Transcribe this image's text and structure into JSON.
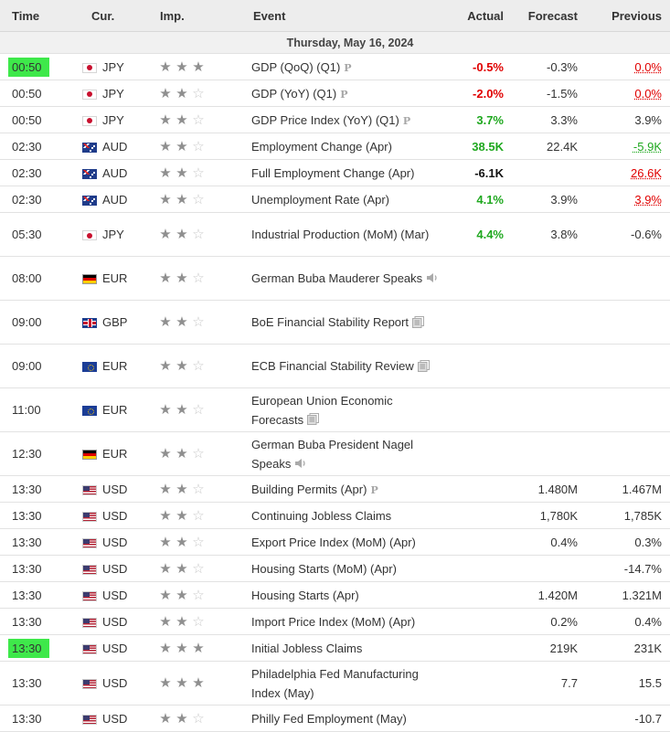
{
  "header": {
    "time": "Time",
    "cur": "Cur.",
    "imp": "Imp.",
    "event": "Event",
    "actual": "Actual",
    "forecast": "Forecast",
    "previous": "Previous"
  },
  "day_label": "Thursday, May 16, 2024",
  "colors": {
    "highlight": "#3ee84a",
    "negative": "#e00000",
    "positive": "#1fa81f"
  },
  "rows": [
    {
      "time": "00:50",
      "cur": "JPY",
      "flag": "jp",
      "stars": 3,
      "event": "GDP (QoQ) (Q1)",
      "extra": "P",
      "actual": "-0.5%",
      "forecast": "-0.3%",
      "previous": "0.0%",
      "highlight": true
    },
    {
      "time": "00:50",
      "cur": "JPY",
      "flag": "jp",
      "stars": 2,
      "event": "GDP (YoY) (Q1)",
      "extra": "P",
      "actual": "-2.0%",
      "forecast": "-1.5%",
      "previous": "0.0%"
    },
    {
      "time": "00:50",
      "cur": "JPY",
      "flag": "jp",
      "stars": 2,
      "event": "GDP Price Index (YoY) (Q1)",
      "extra": "P",
      "actual": "3.7%",
      "forecast": "3.3%",
      "previous": "3.9%"
    },
    {
      "time": "02:30",
      "cur": "AUD",
      "flag": "au",
      "stars": 2,
      "event": "Employment Change (Apr)",
      "actual": "38.5K",
      "forecast": "22.4K",
      "previous": "-5.9K"
    },
    {
      "time": "02:30",
      "cur": "AUD",
      "flag": "au",
      "stars": 2,
      "event": "Full Employment Change (Apr)",
      "actual": "-6.1K",
      "forecast": "",
      "previous": "26.6K"
    },
    {
      "time": "02:30",
      "cur": "AUD",
      "flag": "au",
      "stars": 2,
      "event": "Unemployment Rate (Apr)",
      "actual": "4.1%",
      "forecast": "3.9%",
      "previous": "3.9%"
    },
    {
      "time": "05:30",
      "cur": "JPY",
      "flag": "jp",
      "stars": 2,
      "event": "Industrial Production (MoM) (Mar)",
      "actual": "4.4%",
      "forecast": "3.8%",
      "previous": "-0.6%"
    },
    {
      "time": "08:00",
      "cur": "EUR",
      "flag": "de",
      "stars": 2,
      "event": "German Buba Mauderer Speaks",
      "icon": "speaker-icon",
      "actual": "",
      "forecast": "",
      "previous": ""
    },
    {
      "time": "09:00",
      "cur": "GBP",
      "flag": "gb",
      "stars": 2,
      "event": "BoE Financial Stability Report",
      "icon": "document-icon",
      "actual": "",
      "forecast": "",
      "previous": ""
    },
    {
      "time": "09:00",
      "cur": "EUR",
      "flag": "eu",
      "stars": 2,
      "event": "ECB Financial Stability Review",
      "icon": "document-icon",
      "actual": "",
      "forecast": "",
      "previous": ""
    },
    {
      "time": "11:00",
      "cur": "EUR",
      "flag": "eu",
      "stars": 2,
      "event": "European Union Economic Forecasts",
      "icon": "document-icon",
      "actual": "",
      "forecast": "",
      "previous": ""
    },
    {
      "time": "12:30",
      "cur": "EUR",
      "flag": "de",
      "stars": 2,
      "event": "German Buba President Nagel Speaks",
      "icon": "speaker-icon",
      "actual": "",
      "forecast": "",
      "previous": ""
    },
    {
      "time": "13:30",
      "cur": "USD",
      "flag": "us",
      "stars": 2,
      "event": "Building Permits (Apr)",
      "extra": "P",
      "actual": "",
      "forecast": "1.480M",
      "previous": "1.467M"
    },
    {
      "time": "13:30",
      "cur": "USD",
      "flag": "us",
      "stars": 2,
      "event": "Continuing Jobless Claims",
      "actual": "",
      "forecast": "1,780K",
      "previous": "1,785K"
    },
    {
      "time": "13:30",
      "cur": "USD",
      "flag": "us",
      "stars": 2,
      "event": "Export Price Index (MoM) (Apr)",
      "actual": "",
      "forecast": "0.4%",
      "previous": "0.3%"
    },
    {
      "time": "13:30",
      "cur": "USD",
      "flag": "us",
      "stars": 2,
      "event": "Housing Starts (MoM) (Apr)",
      "actual": "",
      "forecast": "",
      "previous": "-14.7%"
    },
    {
      "time": "13:30",
      "cur": "USD",
      "flag": "us",
      "stars": 2,
      "event": "Housing Starts (Apr)",
      "actual": "",
      "forecast": "1.420M",
      "previous": "1.321M"
    },
    {
      "time": "13:30",
      "cur": "USD",
      "flag": "us",
      "stars": 2,
      "event": "Import Price Index (MoM) (Apr)",
      "actual": "",
      "forecast": "0.2%",
      "previous": "0.4%"
    },
    {
      "time": "13:30",
      "cur": "USD",
      "flag": "us",
      "stars": 3,
      "event": "Initial Jobless Claims",
      "actual": "",
      "forecast": "219K",
      "previous": "231K",
      "highlight": true
    },
    {
      "time": "13:30",
      "cur": "USD",
      "flag": "us",
      "stars": 3,
      "event": "Philadelphia Fed Manufacturing Index (May)",
      "actual": "",
      "forecast": "7.7",
      "previous": "15.5"
    },
    {
      "time": "13:30",
      "cur": "USD",
      "flag": "us",
      "stars": 2,
      "event": "Philly Fed Employment (May)",
      "actual": "",
      "forecast": "",
      "previous": "-10.7"
    }
  ]
}
